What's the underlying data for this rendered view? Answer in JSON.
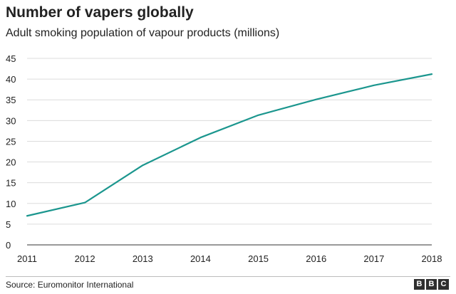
{
  "header": {
    "title": "Number of vapers globally",
    "subtitle": "Adult smoking population of vapour products (millions)"
  },
  "footer": {
    "source": "Source: Euromonitor International",
    "logo_letters": [
      "B",
      "B",
      "C"
    ]
  },
  "colors": {
    "line": "#1b968e",
    "grid": "#dcdcdc",
    "axis": "#333333"
  },
  "chart_data": {
    "type": "line",
    "title": "Number of vapers globally",
    "subtitle": "Adult smoking population of vapour products (millions)",
    "x": [
      "2011",
      "2012",
      "2013",
      "2014",
      "2015",
      "2016",
      "2017",
      "2018"
    ],
    "series": [
      {
        "values": [
          7,
          10.2,
          19.2,
          25.9,
          31.3,
          35.1,
          38.5,
          41.2
        ]
      }
    ],
    "ylim": [
      0,
      45
    ],
    "yticks": [
      0,
      5,
      10,
      15,
      20,
      25,
      30,
      35,
      40,
      45
    ],
    "grid": true,
    "legend": "none"
  }
}
